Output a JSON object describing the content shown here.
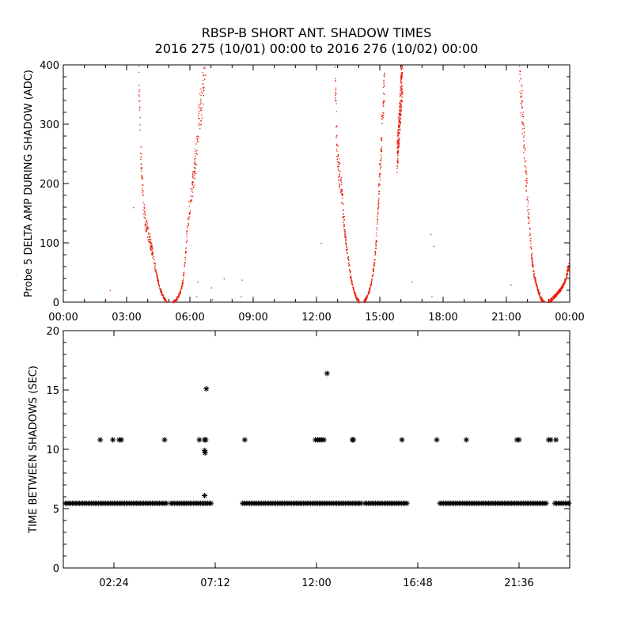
{
  "title": {
    "line1": "RBSP-B SHORT ANT. SHADOW TIMES",
    "line2": "2016 275 (10/01) 00:00 to 2016 276 (10/02) 00:00"
  },
  "colors": {
    "delta_amp_points": "#e8200c",
    "shadow_interval_points": "#000000",
    "axes": "#000000"
  },
  "chart_data": [
    {
      "type": "scatter",
      "title": "",
      "xlabel": "",
      "ylabel": "Probe 5 DELTA AMP DURING SHADOW (ADC)",
      "x_units": "hours since 2016-10-01 00:00",
      "xlim": [
        0,
        24
      ],
      "ylim": [
        0,
        400
      ],
      "x_ticks": [
        0,
        3,
        6,
        9,
        12,
        15,
        18,
        21,
        24
      ],
      "x_tick_labels": [
        "00:00",
        "03:00",
        "06:00",
        "09:00",
        "12:00",
        "15:00",
        "18:00",
        "21:00",
        "00:00"
      ],
      "y_ticks": [
        0,
        100,
        200,
        300,
        400
      ],
      "y_tick_labels": [
        "0",
        "100",
        "200",
        "300",
        "400"
      ],
      "grid": false,
      "legend": "none",
      "series": [
        {
          "color": "#e8200c",
          "segments": [
            {
              "x": [
                3.55,
                3.65,
                3.75,
                3.85,
                3.95,
                4.05,
                4.15,
                4.25,
                4.35,
                4.45,
                4.55,
                4.65,
                4.75,
                4.82,
                4.88
              ],
              "y": [
                380,
                250,
                180,
                140,
                125,
                110,
                95,
                75,
                55,
                40,
                25,
                15,
                8,
                3,
                0
              ]
            },
            {
              "x": [
                5.18,
                5.25,
                5.35,
                5.45,
                5.55,
                5.65,
                5.75,
                5.85,
                5.95,
                6.05,
                6.15,
                6.25,
                6.35,
                6.45,
                6.55,
                6.65,
                6.75
              ],
              "y": [
                0,
                2,
                6,
                12,
                20,
                35,
                70,
                120,
                160,
                185,
                210,
                240,
                280,
                320,
                345,
                380,
                400
              ]
            },
            {
              "x": [
                12.85,
                12.95,
                13.05,
                13.15,
                13.25,
                13.35,
                13.45,
                13.55,
                13.65,
                13.75,
                13.85,
                13.95,
                14.02
              ],
              "y": [
                400,
                260,
                220,
                190,
                150,
                110,
                80,
                55,
                35,
                20,
                10,
                3,
                0
              ]
            },
            {
              "x": [
                14.22,
                14.3,
                14.4,
                14.5,
                14.6,
                14.7,
                14.8,
                14.9,
                15.0,
                15.1,
                15.2
              ],
              "y": [
                0,
                5,
                12,
                22,
                38,
                60,
                100,
                160,
                230,
                300,
                380
              ]
            },
            {
              "x": [
                15.8,
                15.85,
                15.9,
                15.95,
                16.0,
                16.05
              ],
              "y": [
                240,
                270,
                300,
                330,
                360,
                390
              ]
            },
            {
              "x": [
                21.6,
                21.7,
                21.8,
                21.9,
                22.0,
                22.1,
                22.2,
                22.3,
                22.4,
                22.5,
                22.6,
                22.7,
                22.78
              ],
              "y": [
                400,
                340,
                280,
                220,
                160,
                110,
                70,
                45,
                30,
                18,
                8,
                3,
                0
              ]
            },
            {
              "x": [
                22.95,
                23.05,
                23.15,
                23.25,
                23.35,
                23.45,
                23.55,
                23.65,
                23.75,
                23.85,
                23.95
              ],
              "y": [
                0,
                3,
                6,
                10,
                14,
                18,
                22,
                28,
                36,
                48,
                62
              ]
            }
          ],
          "isolated": {
            "x": [
              2.2,
              3.3,
              6.3,
              6.35,
              7.0,
              7.05,
              7.6,
              8.4,
              8.45,
              12.2,
              16.5,
              17.4,
              17.45,
              17.55,
              21.2
            ],
            "y": [
              20,
              160,
              10,
              35,
              25,
              5,
              40,
              10,
              38,
              100,
              35,
              115,
              10,
              95,
              30
            ]
          }
        }
      ]
    },
    {
      "type": "scatter",
      "title": "",
      "xlabel": "",
      "ylabel": "TIME BETWEEN SHADOWS (SEC)",
      "x_units": "hours since 2016-10-01 00:00",
      "xlim": [
        0,
        24
      ],
      "ylim": [
        0,
        20
      ],
      "x_ticks": [
        2.4,
        7.2,
        12.0,
        16.8,
        21.6
      ],
      "x_tick_labels": [
        "02:24",
        "07:12",
        "12:00",
        "16:48",
        "21:36"
      ],
      "y_ticks": [
        0,
        5,
        10,
        15,
        20
      ],
      "y_tick_labels": [
        "0",
        "5",
        "10",
        "15",
        "20"
      ],
      "grid": false,
      "legend": "none",
      "marker": "asterisk",
      "series": [
        {
          "color": "#000000",
          "baseline_y": 5.45,
          "baseline_ranges": [
            [
              0.1,
              4.95
            ],
            [
              5.1,
              7.0
            ],
            [
              8.5,
              14.15
            ],
            [
              14.3,
              16.35
            ],
            [
              17.85,
              22.95
            ],
            [
              23.3,
              24.0
            ]
          ],
          "points": {
            "x": [
              1.75,
              2.35,
              2.65,
              2.75,
              4.8,
              6.45,
              6.7,
              6.75,
              6.7,
              6.72,
              6.78,
              6.7,
              8.6,
              11.95,
              12.05,
              12.15,
              12.25,
              12.35,
              12.5,
              13.7,
              13.75,
              16.05,
              17.7,
              19.1,
              21.5,
              21.6,
              23.0,
              23.1,
              23.35
            ],
            "y": [
              10.8,
              10.8,
              10.8,
              10.8,
              10.8,
              10.8,
              10.8,
              10.8,
              9.9,
              9.7,
              15.1,
              6.1,
              10.8,
              10.8,
              10.8,
              10.8,
              10.8,
              10.8,
              16.4,
              10.8,
              10.8,
              10.8,
              10.8,
              10.8,
              10.8,
              10.8,
              10.8,
              10.8,
              10.8
            ]
          }
        }
      ]
    }
  ]
}
